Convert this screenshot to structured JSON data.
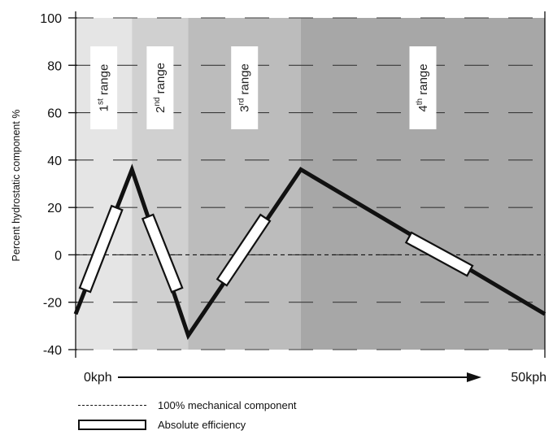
{
  "chart_data": {
    "type": "line",
    "ylabel": "Percent hydrostatic component %",
    "ylim": [
      -40,
      100
    ],
    "yticks": [
      -40,
      -20,
      0,
      20,
      40,
      60,
      80,
      100
    ],
    "ytick_labels": [
      "-40",
      "-20",
      "0",
      "20",
      "40",
      "60",
      "80",
      "100"
    ],
    "xlim": [
      0,
      50
    ],
    "x_start_label": "0kph",
    "x_end_label": "50kph",
    "grid": "dashed horizontal",
    "ranges": [
      {
        "base": "1",
        "sup": "st",
        "rest": " range",
        "x_start": 0,
        "x_end": 6,
        "color": "#e5e5e5"
      },
      {
        "base": "2",
        "sup": "nd",
        "rest": " range",
        "x_start": 6,
        "x_end": 12,
        "color": "#d0d0d0"
      },
      {
        "base": "3",
        "sup": "rd",
        "rest": " range",
        "x_start": 12,
        "x_end": 24,
        "color": "#bcbcbc"
      },
      {
        "base": "4",
        "sup": "th",
        "rest": " range",
        "x_start": 24,
        "x_end": 50,
        "color": "#a7a7a7"
      }
    ],
    "series": [
      {
        "x": [
          0,
          6,
          12,
          24,
          50
        ],
        "y": [
          -25,
          36,
          -34,
          36,
          -25
        ]
      }
    ],
    "mechanical_reference_y": 0,
    "efficiency_bars": [
      {
        "x1": 1.0,
        "y1": -14.8,
        "x2": 4.4,
        "y2": 19.8
      },
      {
        "x1": 7.7,
        "y1": 16.1,
        "x2": 10.8,
        "y2": -14.8
      },
      {
        "x1": 15.6,
        "y1": -11.6,
        "x2": 20.2,
        "y2": 15.6
      },
      {
        "x1": 35.5,
        "y1": 7.3,
        "x2": 42.0,
        "y2": -6.7
      }
    ]
  },
  "legend": {
    "dashed_label": "100% mechanical component",
    "box_label": "Absolute efficiency"
  }
}
